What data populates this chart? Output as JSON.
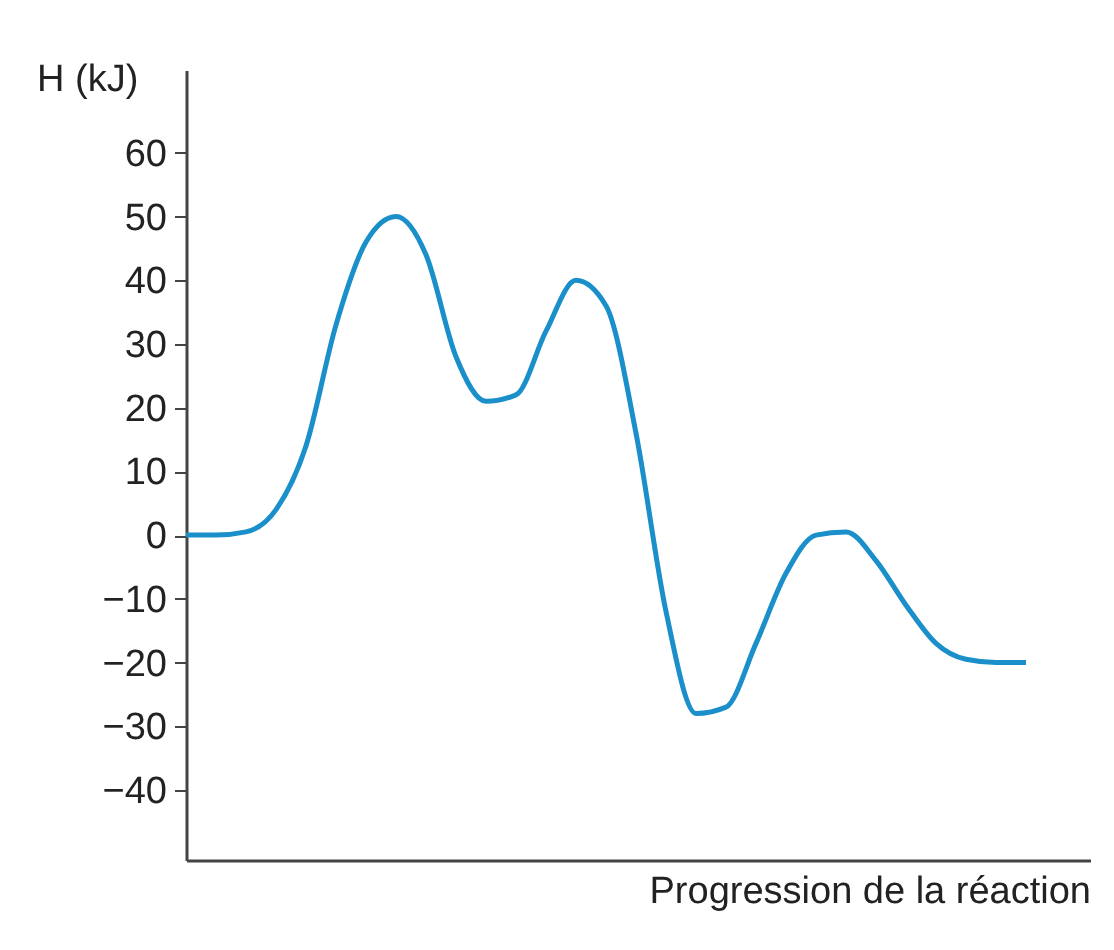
{
  "chart_data": {
    "type": "line",
    "xlabel": "Progression de la réaction",
    "ylabel": "H (kJ)",
    "categories": [
      null,
      null,
      null,
      null,
      null,
      null,
      null,
      null,
      null,
      null,
      null,
      null,
      null,
      null,
      null,
      null,
      null,
      null,
      null,
      null,
      null,
      null,
      null,
      null,
      null,
      null,
      null,
      null,
      null
    ],
    "series": [
      {
        "color": "#1a8fc9",
        "values": [
          0,
          0,
          0.5,
          4,
          14,
          33,
          46,
          50,
          44,
          28,
          21,
          22,
          32,
          40,
          36,
          16,
          -12,
          -28,
          -27,
          -17,
          -6,
          0,
          0.5,
          -4,
          -11,
          -17,
          -19.5,
          -20,
          -20
        ]
      }
    ],
    "ylim": [
      -51,
      73
    ],
    "yticks": [
      -40,
      -30,
      -20,
      -10,
      0,
      10,
      20,
      30,
      40,
      50,
      60
    ],
    "tick_labels": "y",
    "grid": false,
    "marker": "none",
    "line_style": "solid"
  }
}
